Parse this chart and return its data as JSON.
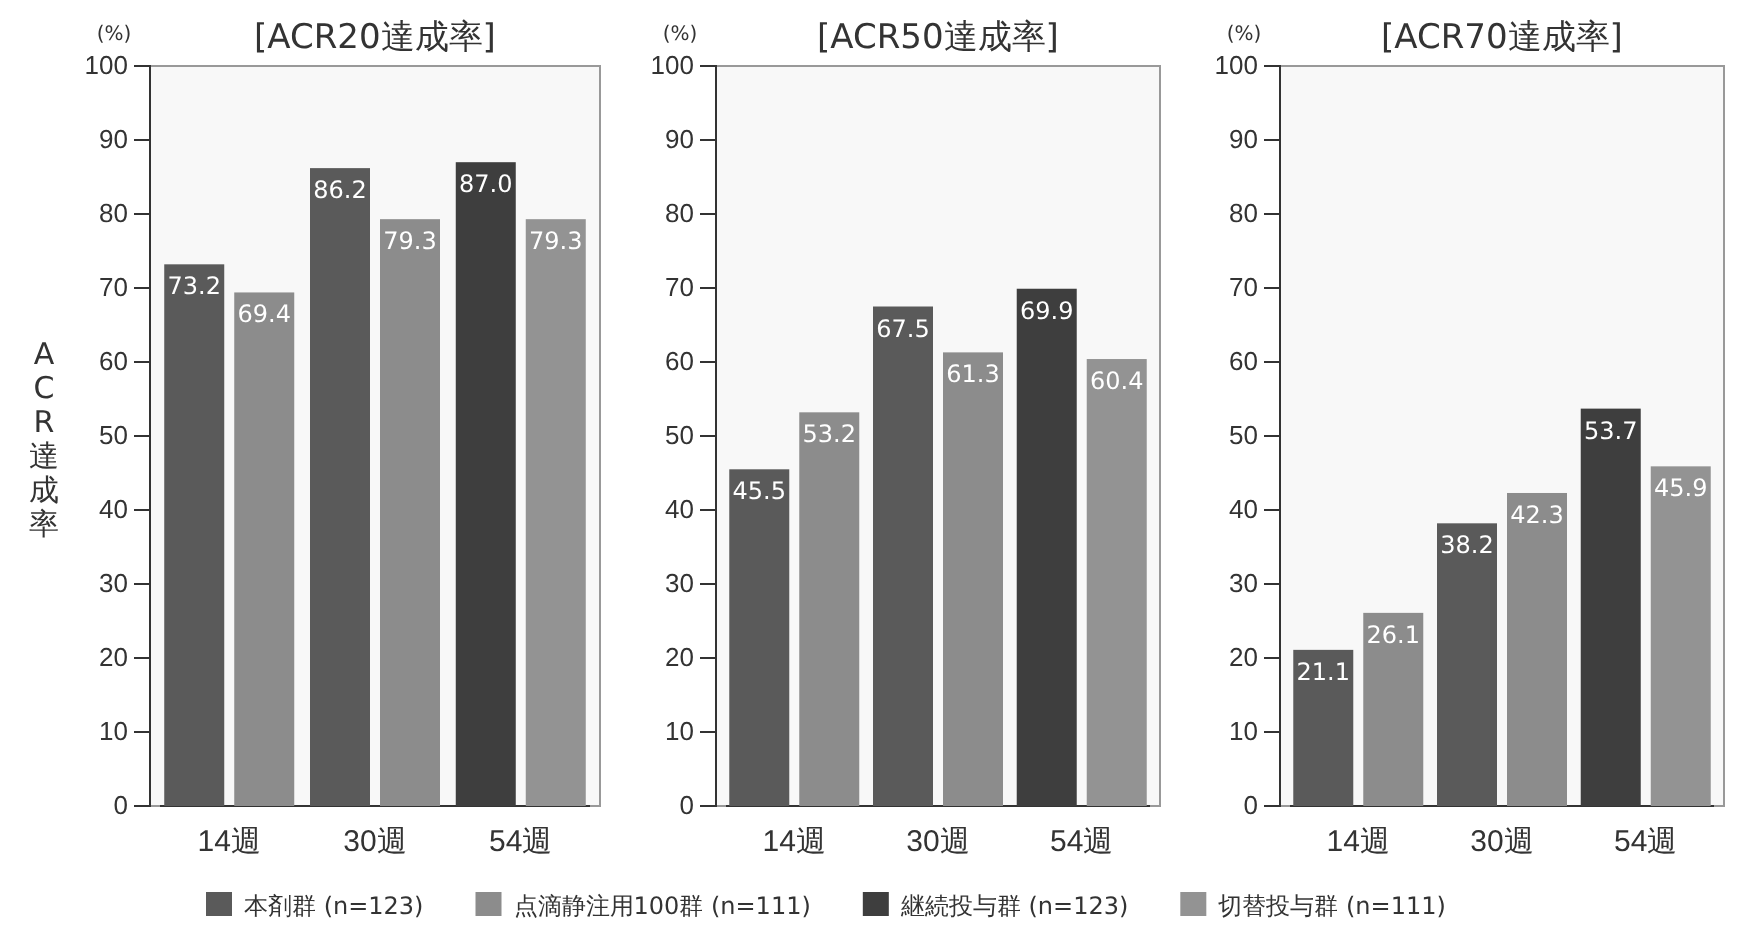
{
  "chart_data": [
    {
      "type": "bar",
      "title": "[ACR20達成率]",
      "ylabel": "ACR達成率",
      "annotations": [
        "(%)"
      ],
      "categories": [
        "14週",
        "30週",
        "54週"
      ],
      "ylim": [
        0,
        100
      ],
      "yticks": [
        0,
        10,
        20,
        30,
        40,
        50,
        60,
        70,
        80,
        90,
        100
      ],
      "grid": false,
      "legend": "bottom",
      "series": [
        {
          "name": "本剤群 (n=123)",
          "color": "#5a5a5a",
          "values": [
            73.2,
            86.2,
            null
          ],
          "value_labels": [
            "73.2",
            "86.2",
            null
          ]
        },
        {
          "name": "点滴静注用100群 (n=111)",
          "color": "#8c8c8c",
          "values": [
            69.4,
            79.3,
            null
          ],
          "value_labels": [
            "69.4",
            "79.3",
            null
          ]
        },
        {
          "name": "継続投与群 (n=123)",
          "color": "#3e3e3e",
          "values": [
            null,
            null,
            87.0
          ],
          "value_labels": [
            null,
            null,
            "87.0"
          ]
        },
        {
          "name": "切替投与群 (n=111)",
          "color": "#939393",
          "values": [
            null,
            null,
            79.3
          ],
          "value_labels": [
            null,
            null,
            "79.3"
          ]
        }
      ]
    },
    {
      "type": "bar",
      "title": "[ACR50達成率]",
      "annotations": [
        "(%)"
      ],
      "categories": [
        "14週",
        "30週",
        "54週"
      ],
      "ylim": [
        0,
        100
      ],
      "yticks": [
        0,
        10,
        20,
        30,
        40,
        50,
        60,
        70,
        80,
        90,
        100
      ],
      "grid": false,
      "series": [
        {
          "color": "#5a5a5a",
          "values": [
            45.5,
            67.5,
            null
          ],
          "value_labels": [
            "45.5",
            "67.5",
            null
          ]
        },
        {
          "color": "#8c8c8c",
          "values": [
            53.2,
            61.3,
            null
          ],
          "value_labels": [
            "53.2",
            "61.3",
            null
          ]
        },
        {
          "color": "#3e3e3e",
          "values": [
            null,
            null,
            69.9
          ],
          "value_labels": [
            null,
            null,
            "69.9"
          ]
        },
        {
          "color": "#939393",
          "values": [
            null,
            null,
            60.4
          ],
          "value_labels": [
            null,
            null,
            "60.4"
          ]
        }
      ]
    },
    {
      "type": "bar",
      "title": "[ACR70達成率]",
      "annotations": [
        "(%)"
      ],
      "categories": [
        "14週",
        "30週",
        "54週"
      ],
      "ylim": [
        0,
        100
      ],
      "yticks": [
        0,
        10,
        20,
        30,
        40,
        50,
        60,
        70,
        80,
        90,
        100
      ],
      "grid": false,
      "series": [
        {
          "color": "#5a5a5a",
          "values": [
            21.1,
            38.2,
            null
          ],
          "value_labels": [
            "21.1",
            "38.2",
            null
          ]
        },
        {
          "color": "#8c8c8c",
          "values": [
            26.1,
            42.3,
            null
          ],
          "value_labels": [
            "26.1",
            "42.3",
            null
          ]
        },
        {
          "color": "#3e3e3e",
          "values": [
            null,
            null,
            53.7
          ],
          "value_labels": [
            null,
            null,
            "53.7"
          ]
        },
        {
          "color": "#939393",
          "values": [
            null,
            null,
            45.9
          ],
          "value_labels": [
            null,
            null,
            "45.9"
          ]
        }
      ]
    }
  ]
}
